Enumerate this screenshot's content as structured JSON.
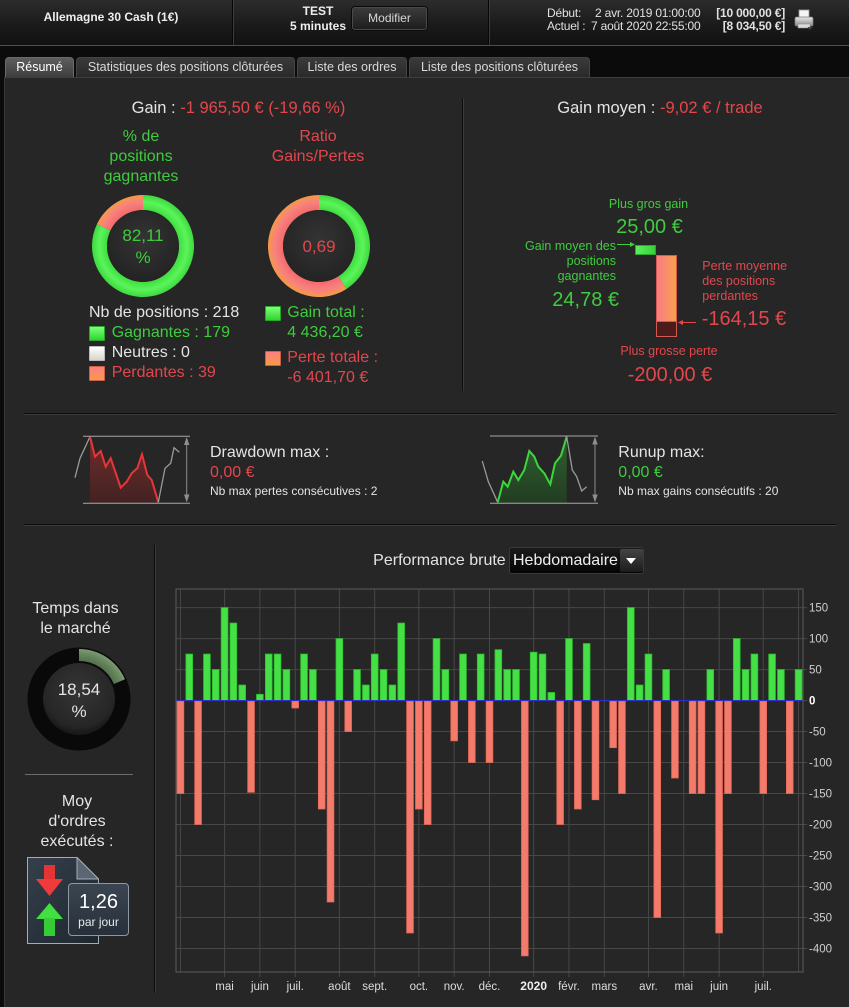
{
  "header": {
    "instrument": "Allemagne 30 Cash (1€)",
    "strategy": "TEST",
    "timeframe": "5 minutes",
    "modify_button": "Modifier",
    "start_label": "Début:",
    "start_date": "2 avr. 2019 01:00:00",
    "start_capital": "[10 000,00 €]",
    "current_label": "Actuel :",
    "current_date": "7 août 2020 22:55:00",
    "current_capital": "[8 034,50 €]",
    "print_icon": "printer-icon"
  },
  "tabs": [
    {
      "label": "Résumé",
      "active": true
    },
    {
      "label": "Statistiques des positions clôturées",
      "active": false
    },
    {
      "label": "Liste des ordres",
      "active": false
    },
    {
      "label": "Liste des positions clôturées",
      "active": false
    }
  ],
  "gain": {
    "label": "Gain :",
    "value": "-1 965,50 € (-19,66 %)"
  },
  "win_rate": {
    "title": "% de positions gagnantes",
    "value": "82,11",
    "unit": "%",
    "percent": 82.11
  },
  "ratio": {
    "title": "Ratio Gains/Pertes",
    "value": "0,69"
  },
  "positions": {
    "total": "Nb de positions : 218",
    "winners": "Gagnantes : 179",
    "neutral": "Neutres : 0",
    "losers": "Perdantes : 39"
  },
  "totals": {
    "gain_label": "Gain total :",
    "gain_value": "4 436,20 €",
    "loss_label": "Perte totale :",
    "loss_value": "-6 401,70 €",
    "gain_amount": 4436.2,
    "loss_amount": -6401.7
  },
  "avg_gain": {
    "label": "Gain moyen :",
    "value": "-9,02 € / trade",
    "biggest_gain_label": "Plus gros gain",
    "biggest_gain": "25,00 €",
    "avg_win_label": "Gain moyen des positions gagnantes",
    "avg_win": "24,78 €",
    "avg_loss_label": "Perte moyenne des positions perdantes",
    "avg_loss": "-164,15 €",
    "biggest_loss_label": "Plus grosse perte",
    "biggest_loss": "-200,00 €",
    "avg_win_amount": 24.78,
    "max_gain_amount": 25.0,
    "avg_loss_amount": -164.15,
    "max_loss_amount": -200.0
  },
  "drawdown": {
    "label": "Drawdown max :",
    "value": "0,00 €",
    "streak": "Nb max pertes consécutives : 2"
  },
  "runup": {
    "label": "Runup max:",
    "value": "0,00 €",
    "streak": "Nb max gains consécutifs : 20"
  },
  "time_in_market": {
    "label": "Temps dans le marché",
    "value": "18,54",
    "unit": "%",
    "percent": 18.54
  },
  "orders": {
    "label": "Moy d'ordres exécutés :",
    "value": "1,26",
    "unit": "par jour"
  },
  "performance": {
    "label": "Performance brute",
    "period": "Hebdomadaire"
  },
  "colors": {
    "gain": "#45e045",
    "loss": "#f47b6b",
    "gain_text": "#3fcc3f",
    "loss_text": "#e3474c",
    "zero_line": "#3030c8"
  },
  "chart_data": {
    "type": "bar",
    "title": "Performance brute",
    "period": "Hebdomadaire",
    "values": [
      -150,
      75,
      -200,
      75,
      50,
      150,
      125,
      25,
      -148,
      10,
      75,
      75,
      50,
      -12,
      75,
      50,
      -175,
      -325,
      100,
      -50,
      50,
      25,
      75,
      50,
      25,
      125,
      -375,
      -175,
      -200,
      100,
      50,
      -65,
      75,
      -100,
      75,
      -100,
      82,
      50,
      50,
      -412,
      78,
      75,
      13,
      -200,
      100,
      -175,
      92,
      -160,
      0,
      -76,
      -150,
      150,
      25,
      75,
      -350,
      50,
      -125,
      0,
      -150,
      -150,
      50,
      -375,
      -150,
      100,
      50,
      75,
      -150,
      75,
      50,
      -150,
      50
    ],
    "x_ticks": [
      {
        "label": "mai",
        "bar": 5
      },
      {
        "label": "juin",
        "bar": 9
      },
      {
        "label": "juil.",
        "bar": 13
      },
      {
        "label": "août",
        "bar": 18
      },
      {
        "label": "sept.",
        "bar": 22
      },
      {
        "label": "oct.",
        "bar": 27
      },
      {
        "label": "nov.",
        "bar": 31
      },
      {
        "label": "déc.",
        "bar": 35
      },
      {
        "label": "2020",
        "bar": 40,
        "bold": true
      },
      {
        "label": "févr.",
        "bar": 44
      },
      {
        "label": "mars",
        "bar": 48
      },
      {
        "label": "avr.",
        "bar": 53
      },
      {
        "label": "mai",
        "bar": 57
      },
      {
        "label": "juin",
        "bar": 61
      },
      {
        "label": "juil.",
        "bar": 66
      }
    ],
    "unlabeled_gridlines_at_bar": [
      0,
      70
    ],
    "y_ticks": [
      150,
      100,
      50,
      0,
      -50,
      -100,
      -150,
      -200,
      -250,
      -300,
      -350,
      -400
    ],
    "ylim": [
      -438,
      180
    ],
    "grid": true,
    "y_axis_side": "right",
    "xlabel": "",
    "ylabel": ""
  }
}
